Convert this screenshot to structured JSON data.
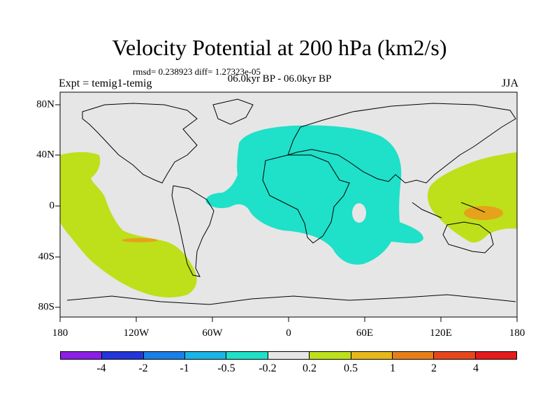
{
  "header": {
    "title": "Velocity Potential at 200 hPa (km2/s)",
    "stats": "rmsd= 0.238923 diff= 1.27323e-05",
    "left_label": "Expt = temig1-temig",
    "center_label": "06.0kyr BP - 06.0kyr BP",
    "right_label": "JJA"
  },
  "axes": {
    "lon_ticks": [
      "180",
      "120W",
      "60W",
      "0",
      "60E",
      "120E",
      "180"
    ],
    "lat_ticks": [
      "80N",
      "40N",
      "0",
      "40S",
      "80S"
    ]
  },
  "colorbar": {
    "colors": [
      "#8c1fe6",
      "#2436d9",
      "#1a7fe6",
      "#1ab4e6",
      "#1fe0c8",
      "#e6e6e6",
      "#bde01a",
      "#e6b81a",
      "#e67f1a",
      "#e6471a",
      "#e61a1a"
    ],
    "labels": [
      "-4",
      "-2",
      "-1",
      "-0.5",
      "-0.2",
      "0.2",
      "0.5",
      "1",
      "2",
      "4"
    ]
  },
  "colors": {
    "background": "#e6e6e6",
    "negative_fill": "#1fe0c8",
    "positive_fill": "#bde01a",
    "strong_positive_fill": "#e6a21a"
  }
}
